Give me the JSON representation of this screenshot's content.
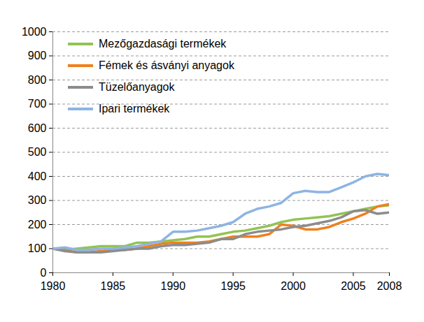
{
  "chart_data": {
    "type": "line",
    "x": [
      1980,
      1981,
      1982,
      1983,
      1984,
      1985,
      1986,
      1987,
      1988,
      1989,
      1990,
      1991,
      1992,
      1993,
      1994,
      1995,
      1996,
      1997,
      1998,
      1999,
      2000,
      2001,
      2002,
      2003,
      2004,
      2005,
      2006,
      2007,
      2008
    ],
    "series": [
      {
        "name": "Mezőgazdasági termékek",
        "color": "#92C353",
        "values": [
          100,
          95,
          100,
          105,
          110,
          110,
          110,
          125,
          125,
          130,
          135,
          140,
          150,
          150,
          160,
          170,
          175,
          185,
          195,
          210,
          220,
          225,
          230,
          235,
          245,
          255,
          265,
          275,
          280
        ]
      },
      {
        "name": "Fémek és ásványi anyagok",
        "color": "#F07F1E",
        "values": [
          100,
          95,
          85,
          85,
          90,
          95,
          95,
          100,
          110,
          120,
          125,
          125,
          125,
          130,
          140,
          150,
          150,
          150,
          160,
          200,
          195,
          180,
          180,
          190,
          210,
          225,
          245,
          275,
          285
        ]
      },
      {
        "name": "Tüzelőanyagok",
        "color": "#8C8C8C",
        "values": [
          100,
          90,
          85,
          85,
          85,
          90,
          95,
          100,
          100,
          110,
          115,
          115,
          120,
          125,
          140,
          140,
          160,
          170,
          175,
          180,
          190,
          195,
          205,
          215,
          230,
          255,
          260,
          245,
          250
        ]
      },
      {
        "name": "Ipari termékek",
        "color": "#8EB4E3",
        "values": [
          100,
          105,
          95,
          95,
          100,
          100,
          105,
          110,
          120,
          130,
          170,
          170,
          175,
          185,
          195,
          210,
          245,
          265,
          275,
          290,
          330,
          340,
          335,
          335,
          355,
          375,
          400,
          410,
          405
        ]
      }
    ],
    "xlim": [
      1980,
      2008
    ],
    "xticks": [
      1980,
      1985,
      1990,
      1995,
      2000,
      2005,
      2008
    ],
    "ylim": [
      0,
      1000
    ],
    "yticks": [
      0,
      100,
      200,
      300,
      400,
      500,
      600,
      700,
      800,
      900,
      1000
    ],
    "grid": true,
    "legend": "top-left"
  }
}
